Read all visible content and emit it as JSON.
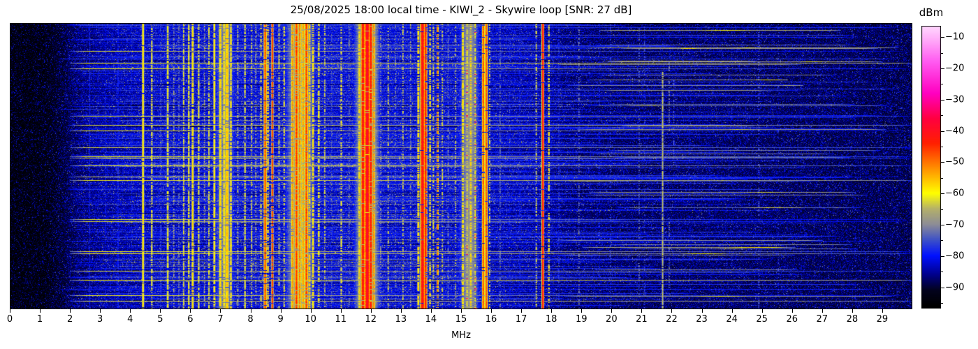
{
  "title": "25/08/2025 18:00 local time - KIWI_2 - Skywire loop [SNR: 27 dB]",
  "chart_data": {
    "type": "heatmap",
    "subtype": "radio-spectrogram-waterfall",
    "station": "KIWI_2",
    "antenna": "Skywire loop",
    "snr_db": 27,
    "datetime_label": "25/08/2025 18:00 local time",
    "seed": 20250825,
    "x_axis": {
      "label": "MHz",
      "min": 0,
      "max": 30,
      "ticks": [
        0,
        1,
        2,
        3,
        4,
        5,
        6,
        7,
        8,
        9,
        10,
        11,
        12,
        13,
        14,
        15,
        16,
        17,
        18,
        19,
        20,
        21,
        22,
        23,
        24,
        25,
        26,
        27,
        28,
        29
      ]
    },
    "colorbar": {
      "label": "dBm",
      "top_value": -6.4,
      "bottom_value": -96.8,
      "major_ticks": [
        -10,
        -20,
        -30,
        -40,
        -50,
        -60,
        -70,
        -80,
        -90
      ],
      "minor_ticks": [
        -15,
        -25,
        -35,
        -45,
        -55,
        -65,
        -75,
        -85,
        -95
      ]
    },
    "colormap_stops": [
      [
        -96,
        "#000000"
      ],
      [
        -91,
        "#02021e"
      ],
      [
        -86,
        "#00008c"
      ],
      [
        -80,
        "#0010ff"
      ],
      [
        -75,
        "#3c50c8"
      ],
      [
        -70,
        "#8c8c96"
      ],
      [
        -65,
        "#b4b06a"
      ],
      [
        -60,
        "#ffff00"
      ],
      [
        -52,
        "#ff9000"
      ],
      [
        -44,
        "#ff2000"
      ],
      [
        -36,
        "#ff0040"
      ],
      [
        -28,
        "#ff00c0"
      ],
      [
        -18,
        "#ff58f0"
      ],
      [
        -10,
        "#ffb4fa"
      ],
      [
        -5,
        "#ffe6ff"
      ]
    ],
    "noise_floor_dbm_by_mhz": [
      [
        0,
        -96.5
      ],
      [
        1.2,
        -96
      ],
      [
        2,
        -91.5
      ],
      [
        3,
        -89
      ],
      [
        4,
        -88
      ],
      [
        5,
        -87
      ],
      [
        6,
        -86.5
      ],
      [
        8,
        -86
      ],
      [
        12,
        -86
      ],
      [
        15,
        -86.5
      ],
      [
        16,
        -88
      ],
      [
        17.5,
        -89
      ],
      [
        18,
        -89.5
      ],
      [
        20,
        -90.5
      ],
      [
        24,
        -90.5
      ],
      [
        27,
        -91
      ],
      [
        30,
        -91.5
      ]
    ],
    "row_events": [
      {
        "name": "broad-lift",
        "p": 0.5,
        "db_min": 1,
        "db_max": 4,
        "f_min": 1.8,
        "f_max": 18.5,
        "mode": "add"
      },
      {
        "name": "noise-burst",
        "p": 0.2,
        "db_min": 3,
        "db_max": 8,
        "f_min": 2,
        "f_max": 26,
        "mode": "add",
        "rand_span": true
      },
      {
        "name": "blue-streak",
        "p": 0.2,
        "lvl_min": -80,
        "lvl_max": -76,
        "f_min": 1.6,
        "f_max": 30,
        "mode": "max",
        "rand_span": true
      },
      {
        "name": "gray-streak",
        "p": 0.06,
        "lvl_min": -64,
        "lvl_max": -59,
        "slope_min": 0.3,
        "slope_max": 0.9,
        "f_min": 2,
        "f_max": 30,
        "mode": "ramp"
      },
      {
        "name": "hf-streak",
        "p": 0.07,
        "lvl_min": -74,
        "lvl_max": -66,
        "f_min": 18,
        "f_max": 30,
        "mode": "max",
        "rand_span": true,
        "core": true
      },
      {
        "name": "fade",
        "p": 0.09,
        "db_min": -7,
        "db_max": -3,
        "f_min": 3.5,
        "f_max": 16,
        "mode": "add"
      }
    ],
    "signal_fields": [
      "freq_mhz",
      "halfwidth_mhz",
      "level_dbm",
      "duty",
      "y_start_frac",
      "y_end_frac"
    ],
    "signals": [
      [
        2.66,
        0.02,
        -79,
        0.85,
        0,
        1
      ],
      [
        3.18,
        0.02,
        -80,
        0.6,
        0,
        1
      ],
      [
        3.6,
        0.02,
        -77,
        0.7,
        0,
        1
      ],
      [
        4.05,
        0.02,
        -79,
        0.5,
        0,
        1
      ],
      [
        4.43,
        0.03,
        -57,
        0.95,
        0,
        1
      ],
      [
        4.72,
        0.025,
        -60,
        0.65,
        0,
        1
      ],
      [
        5.02,
        0.02,
        -73,
        0.6,
        0,
        1
      ],
      [
        5.25,
        0.03,
        -60,
        0.8,
        0,
        1
      ],
      [
        5.45,
        0.02,
        -66,
        0.5,
        0,
        1
      ],
      [
        5.62,
        0.02,
        -70,
        0.5,
        0,
        1
      ],
      [
        5.78,
        0.025,
        -61,
        0.75,
        0,
        1
      ],
      [
        5.95,
        0.025,
        -59,
        0.8,
        0,
        1
      ],
      [
        6.08,
        0.03,
        -57,
        0.9,
        0,
        1
      ],
      [
        6.28,
        0.025,
        -61,
        0.7,
        0,
        1
      ],
      [
        6.47,
        0.02,
        -65,
        0.5,
        0,
        1
      ],
      [
        6.62,
        0.025,
        -60,
        0.7,
        0,
        1
      ],
      [
        6.8,
        0.03,
        -58,
        0.85,
        0,
        1
      ],
      [
        7.0,
        0.035,
        -56,
        0.9,
        0,
        1
      ],
      [
        7.12,
        0.03,
        -57,
        0.85,
        0,
        1
      ],
      [
        7.22,
        0.05,
        -55,
        0.9,
        0,
        1
      ],
      [
        7.35,
        0.03,
        -58,
        0.8,
        0,
        1
      ],
      [
        7.15,
        0.3,
        -71,
        1,
        0,
        1
      ],
      [
        7.58,
        0.02,
        -64,
        0.5,
        0,
        1
      ],
      [
        7.82,
        0.025,
        -60,
        0.7,
        0,
        1
      ],
      [
        8.04,
        0.02,
        -62,
        0.55,
        0,
        1
      ],
      [
        8.18,
        0.02,
        -65,
        0.45,
        0,
        1
      ],
      [
        8.35,
        0.02,
        -60,
        0.5,
        0,
        1
      ],
      [
        8.49,
        0.035,
        -47,
        0.9,
        0,
        1
      ],
      [
        8.58,
        0.02,
        -54,
        0.6,
        0,
        1
      ],
      [
        8.73,
        0.022,
        -44,
        0.85,
        0,
        1
      ],
      [
        8.95,
        0.02,
        -62,
        0.5,
        0,
        1
      ],
      [
        9.12,
        0.02,
        -59,
        0.55,
        0,
        1
      ],
      [
        9.65,
        0.38,
        -65,
        1,
        0,
        1
      ],
      [
        9.4,
        0.035,
        -52,
        0.85,
        0,
        1
      ],
      [
        9.53,
        0.04,
        -45,
        0.9,
        0,
        1
      ],
      [
        9.64,
        0.03,
        -49,
        0.8,
        0,
        1
      ],
      [
        9.75,
        0.035,
        -52,
        0.8,
        0,
        1
      ],
      [
        9.86,
        0.04,
        -46,
        0.9,
        0,
        1
      ],
      [
        9.96,
        0.03,
        -55,
        0.7,
        0,
        1
      ],
      [
        10.08,
        0.03,
        -57,
        0.7,
        0,
        1
      ],
      [
        10.27,
        0.03,
        -59,
        0.6,
        0,
        1
      ],
      [
        10.47,
        0.025,
        -62,
        0.5,
        0,
        1
      ],
      [
        10.7,
        0.02,
        -73,
        0.45,
        0,
        1
      ],
      [
        11.02,
        0.03,
        -61,
        0.5,
        0,
        1
      ],
      [
        11.28,
        0.02,
        -69,
        0.4,
        0,
        1
      ],
      [
        11.88,
        0.33,
        -63,
        1,
        0,
        1
      ],
      [
        11.62,
        0.03,
        -57,
        0.7,
        0,
        1
      ],
      [
        11.74,
        0.045,
        -41,
        0.95,
        0,
        1
      ],
      [
        11.88,
        0.055,
        -38,
        0.97,
        0,
        1
      ],
      [
        12.0,
        0.04,
        -42,
        0.9,
        0,
        1
      ],
      [
        12.1,
        0.03,
        -50,
        0.75,
        0,
        1
      ],
      [
        12.33,
        0.02,
        -67,
        0.4,
        0,
        1
      ],
      [
        12.58,
        0.025,
        -62,
        0.45,
        0,
        1
      ],
      [
        12.82,
        0.02,
        -70,
        0.4,
        0,
        1
      ],
      [
        13.07,
        0.025,
        -62,
        0.5,
        0,
        1
      ],
      [
        13.32,
        0.02,
        -66,
        0.45,
        0,
        1
      ],
      [
        13.58,
        0.03,
        -56,
        0.7,
        0,
        1
      ],
      [
        13.72,
        0.05,
        -40,
        0.97,
        0,
        1
      ],
      [
        13.82,
        0.035,
        -43,
        0.9,
        0,
        1
      ],
      [
        13.97,
        0.025,
        -56,
        0.6,
        0,
        1
      ],
      [
        14.08,
        0.02,
        -61,
        0.5,
        0,
        1
      ],
      [
        14.22,
        0.025,
        -49,
        0.55,
        0,
        1
      ],
      [
        14.38,
        0.02,
        -62,
        0.45,
        0,
        1
      ],
      [
        14.57,
        0.02,
        -68,
        0.45,
        0,
        1
      ],
      [
        14.82,
        0.02,
        -63,
        0.4,
        0,
        1
      ],
      [
        15.28,
        0.3,
        -69,
        1,
        0,
        1
      ],
      [
        15.06,
        0.035,
        -57,
        0.75,
        0,
        1
      ],
      [
        15.2,
        0.03,
        -60,
        0.6,
        0,
        1
      ],
      [
        15.32,
        0.03,
        -56,
        0.65,
        0,
        1
      ],
      [
        15.47,
        0.025,
        -59,
        0.6,
        0,
        1
      ],
      [
        15.48,
        0.02,
        -27,
        0.06,
        0,
        1
      ],
      [
        15.2,
        0.018,
        -28,
        0.05,
        0,
        1
      ],
      [
        15.74,
        0.032,
        -47,
        0.95,
        0,
        1
      ],
      [
        15.84,
        0.032,
        -47,
        0.95,
        0,
        1
      ],
      [
        15.95,
        0.02,
        -60,
        0.4,
        0,
        1
      ],
      [
        16.3,
        0.02,
        -71,
        0.5,
        0,
        1
      ],
      [
        16.62,
        0.018,
        -79,
        0.4,
        0,
        1
      ],
      [
        16.95,
        0.018,
        -77,
        0.35,
        0,
        1
      ],
      [
        17.5,
        0.02,
        -61,
        0.45,
        0,
        1
      ],
      [
        17.72,
        0.025,
        -38,
        0.97,
        0,
        1
      ],
      [
        17.92,
        0.02,
        -57,
        0.55,
        0,
        1
      ],
      [
        18.25,
        0.018,
        -75,
        0.35,
        0,
        1
      ],
      [
        18.92,
        0.02,
        -69,
        0.3,
        0,
        1
      ],
      [
        19.6,
        0.018,
        -78,
        0.3,
        0,
        1
      ],
      [
        19.97,
        0.018,
        -74,
        0.3,
        0,
        1
      ],
      [
        20.92,
        0.02,
        -71,
        0.3,
        0,
        1
      ],
      [
        21.1,
        0.018,
        -75,
        0.25,
        0,
        1
      ],
      [
        21.7,
        0.025,
        -64,
        0.85,
        0.17,
        1
      ],
      [
        21.92,
        0.02,
        -69,
        0.5,
        0.15,
        0.38
      ],
      [
        21.92,
        0.02,
        -70,
        0.5,
        0.68,
        0.95
      ],
      [
        22.07,
        0.018,
        -72,
        0.4,
        0.2,
        0.5
      ],
      [
        22.6,
        0.018,
        -79,
        0.2,
        0,
        1
      ],
      [
        23.25,
        0.018,
        -80,
        0.18,
        0,
        1
      ],
      [
        24.0,
        0.018,
        -78,
        0.18,
        0,
        1
      ],
      [
        24.9,
        0.02,
        -70,
        0.2,
        0,
        1
      ],
      [
        25.55,
        0.018,
        -74,
        0.15,
        0,
        1
      ],
      [
        26.3,
        0.018,
        -78,
        0.15,
        0,
        1
      ],
      [
        27.2,
        0.018,
        -79,
        0.12,
        0,
        1
      ],
      [
        28.1,
        0.018,
        -78,
        0.12,
        0,
        1
      ],
      [
        28.95,
        0.018,
        -77,
        0.12,
        0,
        1
      ],
      [
        29.5,
        0.018,
        -75,
        0.15,
        0,
        1
      ]
    ]
  }
}
